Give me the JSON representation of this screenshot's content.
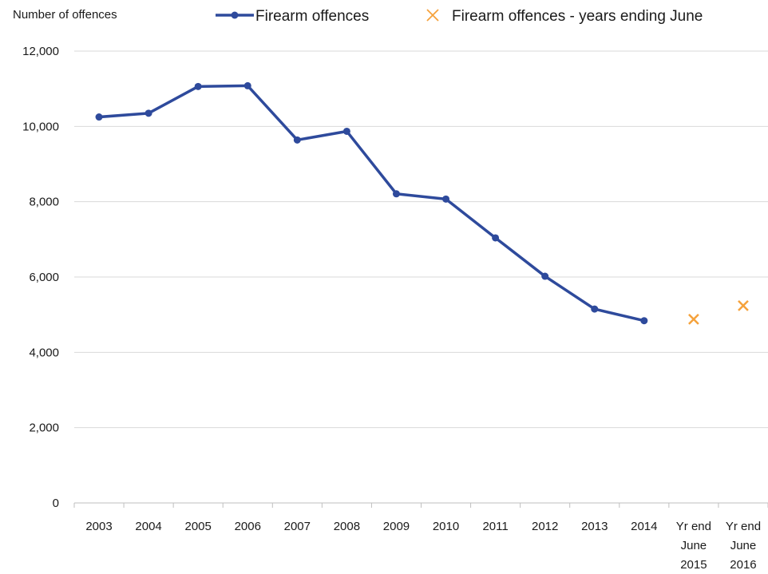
{
  "chart_data": {
    "type": "line",
    "title": "",
    "xlabel": "",
    "ylabel": "Number of offences",
    "ylim": [
      0,
      12000
    ],
    "yticks": [
      0,
      2000,
      4000,
      6000,
      8000,
      10000,
      12000
    ],
    "ytick_labels": [
      "0",
      "2,000",
      "4,000",
      "6,000",
      "8,000",
      "10,000",
      "12,000"
    ],
    "grid": true,
    "legend_position": "top",
    "categories": [
      [
        "2003"
      ],
      [
        "2004"
      ],
      [
        "2005"
      ],
      [
        "2006"
      ],
      [
        "2007"
      ],
      [
        "2008"
      ],
      [
        "2009"
      ],
      [
        "2010"
      ],
      [
        "2011"
      ],
      [
        "2012"
      ],
      [
        "2013"
      ],
      [
        "2014"
      ],
      [
        "Yr end",
        "June",
        "2015"
      ],
      [
        "Yr end",
        "June",
        "2016"
      ]
    ],
    "series": [
      {
        "name": "Firearm offences",
        "color": "#2e4a9c",
        "marker": "circle",
        "values": [
          10250,
          10350,
          11060,
          11080,
          9640,
          9870,
          8210,
          8070,
          7040,
          6020,
          5150,
          4840,
          null,
          null
        ]
      },
      {
        "name": "Firearm offences - years ending June",
        "color": "#f5a23c",
        "marker": "x",
        "values": [
          null,
          null,
          null,
          null,
          null,
          null,
          null,
          null,
          null,
          null,
          null,
          null,
          4880,
          5240
        ]
      }
    ]
  }
}
